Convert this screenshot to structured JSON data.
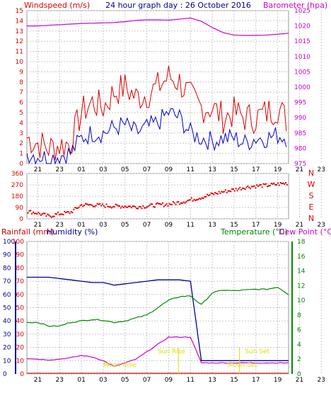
{
  "header": {
    "left": "Windspeed (m/s)",
    "center": "24 hour graph day : 26 October 2016",
    "right": "Barometer (hpa)"
  },
  "colors": {
    "wind": "#dd0000",
    "gust": "#dd0000",
    "avg": "#0000cc",
    "baro": "#cc00cc",
    "dir": "#dd0000",
    "rain": "#cc0000",
    "hum": "#000099",
    "temp": "#008800",
    "dew": "#cc00cc",
    "grid": "#c8c8c8",
    "sun": "#dddd00",
    "moon": "#dddd00"
  },
  "time_ticks": [
    "21",
    "23",
    "01",
    "03",
    "05",
    "07",
    "09",
    "11",
    "13",
    "15",
    "17",
    "19",
    "21",
    "23"
  ],
  "chart_data": [
    {
      "type": "line",
      "title": "24 hour graph day : 26 October 2016",
      "ylabel": "Windspeed (m/s)",
      "ylabel_right": "Barometer (hpa)",
      "ylim": [
        0,
        15
      ],
      "ylim_right": [
        975,
        1025
      ],
      "yticks": [
        "0",
        "1",
        "2",
        "3",
        "4",
        "5",
        "6",
        "7",
        "8",
        "9",
        "10",
        "11",
        "12",
        "13",
        "14",
        "15"
      ],
      "yticks_right": [
        "975",
        "980",
        "985",
        "990",
        "995",
        "1000",
        "1005",
        "1010",
        "1015",
        "1020",
        "1025"
      ],
      "x_hours": [
        20,
        21,
        22,
        23,
        24,
        25,
        26,
        27,
        28,
        29,
        30,
        31,
        32,
        33,
        34,
        35,
        36,
        37,
        38,
        39,
        40,
        41,
        42,
        43,
        44
      ],
      "series": [
        {
          "values": [
            2.5,
            2,
            1.5,
            1.8,
            2,
            5,
            6,
            5.5,
            7,
            7.5,
            6.5,
            6.8,
            7.5,
            8.5,
            8,
            6.5,
            5.5,
            5.5,
            4.5,
            5,
            4.5,
            4.5,
            5,
            5.5,
            4
          ]
        },
        {
          "values": [
            1,
            0.8,
            0.5,
            0.8,
            1,
            2.5,
            3,
            3,
            3.5,
            3.8,
            3,
            3.5,
            4,
            5,
            4.5,
            3,
            2.5,
            2.2,
            2.5,
            2.5,
            2,
            2.5,
            2.5,
            2.8,
            2.5
          ]
        },
        {
          "values": [
            1020,
            1020,
            1020.2,
            1020.4,
            1020.6,
            1020.8,
            1020.9,
            1021,
            1021.1,
            1021.4,
            1021.8,
            1022,
            1022,
            1021.9,
            1022.2,
            1022.6,
            1021.5,
            1019.5,
            1017.8,
            1017,
            1016.9,
            1016.9,
            1017,
            1017.3,
            1017.6
          ]
        }
      ]
    },
    {
      "type": "scatter",
      "ylim": [
        0,
        360
      ],
      "yticks": [
        "0",
        "90",
        "180",
        "270",
        "360"
      ],
      "compass": [
        "N",
        "W",
        "S",
        "E",
        "N"
      ],
      "x_hours": [
        20,
        21,
        22,
        23,
        24,
        25,
        26,
        27,
        28,
        29,
        30,
        31,
        32,
        33,
        34,
        35,
        36,
        37,
        38,
        39,
        40,
        41,
        42,
        43,
        44
      ],
      "series": [
        {
          "values": [
            60,
            45,
            20,
            40,
            50,
            110,
            110,
            105,
            100,
            100,
            95,
            100,
            110,
            115,
            130,
            150,
            170,
            195,
            215,
            230,
            250,
            260,
            265,
            275,
            285
          ]
        }
      ]
    },
    {
      "type": "line",
      "ylabel": "Rainfall (mm)",
      "ylabel_2": "Humidity (%)",
      "ylabel_right": "Temperature (°C)",
      "ylabel_right_2": "Dew Point (°C)",
      "ylim": [
        0,
        100
      ],
      "ylim_right": [
        0,
        18
      ],
      "yticks": [
        "0",
        "10",
        "20",
        "30",
        "40",
        "50",
        "60",
        "70",
        "80",
        "90",
        "100"
      ],
      "yticks_right": [
        "0",
        "2",
        "4",
        "6",
        "8",
        "10",
        "12",
        "14",
        "16",
        "18"
      ],
      "annotations": [
        "Moon Rise",
        "Sun Rise",
        "Sun Set",
        "Moon Set"
      ],
      "x_hours": [
        20,
        21,
        22,
        23,
        24,
        25,
        26,
        27,
        28,
        29,
        30,
        31,
        32,
        33,
        34,
        35,
        36,
        37,
        38,
        39,
        40,
        41,
        42,
        43,
        44
      ],
      "series": [
        {
          "values": [
            0,
            0,
            0,
            0,
            0,
            0,
            0,
            0,
            0,
            0,
            0,
            0,
            0,
            0,
            0,
            0,
            0,
            0,
            0,
            0,
            0,
            0,
            0,
            0,
            0
          ]
        },
        {
          "values": [
            73,
            73,
            73,
            72,
            71,
            70,
            69,
            69,
            67,
            68,
            69,
            70,
            71,
            71,
            71,
            70,
            10,
            10,
            10,
            10,
            10,
            10,
            10,
            10,
            10
          ]
        },
        {
          "values": [
            7,
            7,
            6.5,
            6.5,
            7,
            7.2,
            7.4,
            7.3,
            7,
            7.2,
            7.6,
            8,
            9,
            10,
            10.5,
            10.6,
            9.4,
            11,
            11.4,
            11.3,
            11.4,
            11.5,
            11.5,
            11.8,
            10.8
          ]
        },
        {
          "values": [
            2.1,
            2,
            1.9,
            2,
            2.2,
            2.5,
            2.3,
            1.8,
            1,
            1.5,
            2,
            3,
            4,
            5,
            5,
            5,
            1.5,
            1.5,
            1.5,
            1.5,
            1.5,
            1.5,
            1.5,
            1.5,
            1.5
          ]
        }
      ]
    }
  ]
}
